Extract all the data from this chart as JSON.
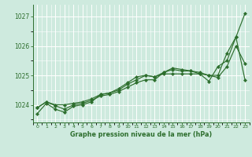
{
  "title": "Graphe pression niveau de la mer (hPa)",
  "xlabel_hours": [
    0,
    1,
    2,
    3,
    4,
    5,
    6,
    7,
    8,
    9,
    10,
    11,
    12,
    13,
    14,
    15,
    16,
    17,
    18,
    19,
    20,
    21,
    22,
    23
  ],
  "ylim": [
    1023.4,
    1027.4
  ],
  "yticks": [
    1024,
    1025,
    1026,
    1027
  ],
  "background_color": "#ceeade",
  "grid_color": "#ffffff",
  "line_color": "#2d6e2d",
  "line1": [
    1023.7,
    1024.05,
    1023.85,
    1023.75,
    1023.95,
    1024.0,
    1024.1,
    1024.35,
    1024.4,
    1024.55,
    1024.75,
    1024.95,
    1025.0,
    1024.95,
    1025.05,
    1025.05,
    1025.05,
    1025.05,
    1025.05,
    1024.8,
    1025.3,
    1025.5,
    1026.3,
    1027.1
  ],
  "line2": [
    1023.9,
    1024.1,
    1023.97,
    1023.85,
    1024.0,
    1024.05,
    1024.15,
    1024.3,
    1024.35,
    1024.45,
    1024.6,
    1024.75,
    1024.85,
    1024.85,
    1025.1,
    1025.2,
    1025.15,
    1025.15,
    1025.05,
    1025.0,
    1025.0,
    1025.75,
    1026.3,
    1024.85
  ],
  "line3": [
    1023.9,
    1024.1,
    1024.0,
    1024.0,
    1024.05,
    1024.1,
    1024.2,
    1024.35,
    1024.4,
    1024.5,
    1024.7,
    1024.85,
    1025.0,
    1024.95,
    1025.1,
    1025.25,
    1025.2,
    1025.15,
    1025.1,
    1025.0,
    1024.93,
    1025.3,
    1026.0,
    1025.4
  ]
}
